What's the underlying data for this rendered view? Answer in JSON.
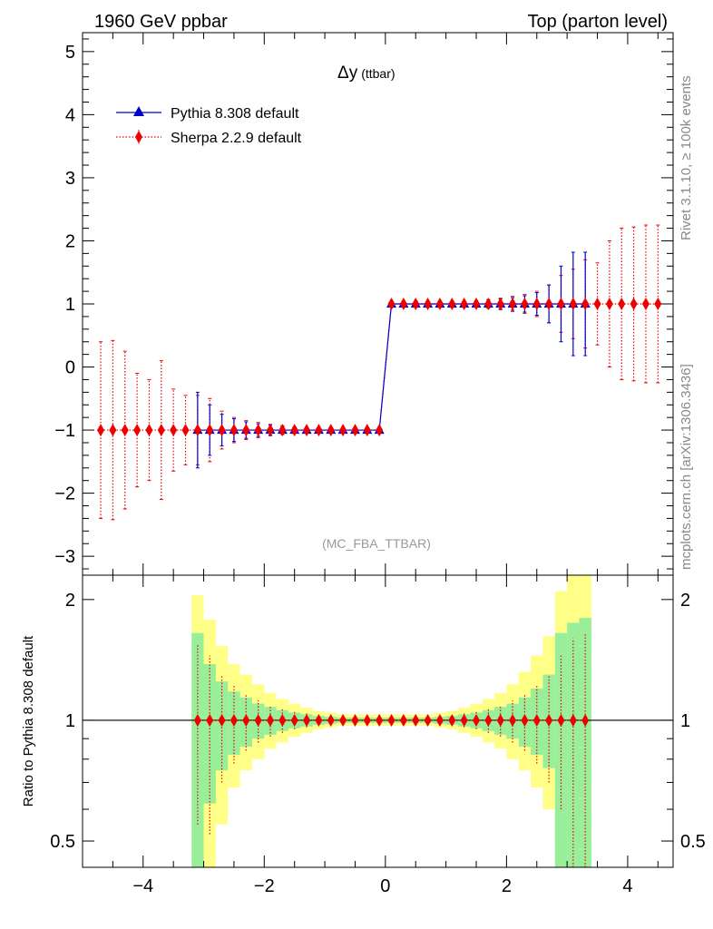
{
  "header": {
    "left": "1960 GeV ppbar",
    "right": "Top (parton level)"
  },
  "side": {
    "upper": "Rivet 3.1.10, ≥ 100k events",
    "lower": "mcplots.cern.ch [arXiv:1306.3436]"
  },
  "chart_data": [
    {
      "type": "line",
      "title": "Δy",
      "title_sub": "(ttbar)",
      "watermark": "(MC_FBA_TTBAR)",
      "xlabel": "",
      "ylabel": "",
      "xlim": [
        -5,
        4.75
      ],
      "ylim": [
        -3.3,
        5.3
      ],
      "x_ticks": [
        -4,
        -2,
        0,
        2,
        4
      ],
      "y_ticks": [
        -3,
        -2,
        -1,
        0,
        1,
        2,
        3,
        4,
        5
      ],
      "legend": "top-left",
      "series": [
        {
          "name": "Pythia 8.308 default",
          "color": "#0000cc",
          "marker": "triangle",
          "line": "solid",
          "x": [
            -3.1,
            -2.9,
            -2.7,
            -2.5,
            -2.3,
            -2.1,
            -1.9,
            -1.7,
            -1.5,
            -1.3,
            -1.1,
            -0.9,
            -0.7,
            -0.5,
            -0.3,
            -0.1,
            0.1,
            0.3,
            0.5,
            0.7,
            0.9,
            1.1,
            1.3,
            1.5,
            1.7,
            1.9,
            2.1,
            2.3,
            2.5,
            2.7,
            2.9,
            3.1,
            3.3
          ],
          "y": [
            -1,
            -1,
            -1,
            -1,
            -1,
            -1,
            -1,
            -1,
            -1,
            -1,
            -1,
            -1,
            -1,
            -1,
            -1,
            -1,
            1,
            1,
            1,
            1,
            1,
            1,
            1,
            1,
            1,
            1,
            1,
            1,
            1,
            1,
            1,
            1,
            1
          ],
          "err": [
            0.6,
            0.4,
            0.25,
            0.18,
            0.13,
            0.1,
            0.08,
            0.06,
            0.05,
            0.04,
            0.03,
            0.025,
            0.02,
            0.02,
            0.02,
            0.02,
            0.02,
            0.02,
            0.02,
            0.02,
            0.025,
            0.03,
            0.04,
            0.05,
            0.06,
            0.08,
            0.1,
            0.13,
            0.18,
            0.3,
            0.6,
            0.82,
            0.82
          ]
        },
        {
          "name": "Sherpa 2.2.9 default",
          "color": "#ee0000",
          "marker": "diamond",
          "line": "dotted",
          "x": [
            -4.7,
            -4.5,
            -4.3,
            -4.1,
            -3.9,
            -3.7,
            -3.5,
            -3.3,
            -3.1,
            -2.9,
            -2.7,
            -2.5,
            -2.3,
            -2.1,
            -1.9,
            -1.7,
            -1.5,
            -1.3,
            -1.1,
            -0.9,
            -0.7,
            -0.5,
            -0.3,
            -0.1,
            0.1,
            0.3,
            0.5,
            0.7,
            0.9,
            1.1,
            1.3,
            1.5,
            1.7,
            1.9,
            2.1,
            2.3,
            2.5,
            2.7,
            2.9,
            3.1,
            3.3,
            3.5,
            3.7,
            3.9,
            4.1,
            4.3,
            4.5
          ],
          "y": [
            -1,
            -1,
            -1,
            -1,
            -1,
            -1,
            -1,
            -1,
            -1,
            -1,
            -1,
            -1,
            -1,
            -1,
            -1,
            -1,
            -1,
            -1,
            -1,
            -1,
            -1,
            -1,
            -1,
            -1,
            1,
            1,
            1,
            1,
            1,
            1,
            1,
            1,
            1,
            1,
            1,
            1,
            1,
            1,
            1,
            1,
            1,
            1,
            1,
            1,
            1,
            1,
            1
          ],
          "err": [
            1.4,
            1.42,
            1.25,
            0.9,
            0.8,
            1.1,
            0.65,
            0.55,
            0.55,
            0.5,
            0.3,
            0.2,
            0.15,
            0.12,
            0.09,
            0.07,
            0.05,
            0.04,
            0.03,
            0.03,
            0.02,
            0.02,
            0.02,
            0.02,
            0.02,
            0.02,
            0.02,
            0.02,
            0.03,
            0.03,
            0.04,
            0.05,
            0.07,
            0.09,
            0.12,
            0.15,
            0.2,
            0.3,
            0.45,
            0.55,
            0.7,
            0.65,
            1.0,
            1.2,
            1.22,
            1.25,
            1.25
          ]
        }
      ]
    },
    {
      "type": "line",
      "ylabel": "Ratio to Pythia 8.308 default",
      "xlim": [
        -5,
        4.75
      ],
      "ylim": [
        0.43,
        2.3
      ],
      "log_y": true,
      "x_ticks": [
        -4,
        -2,
        0,
        2,
        4
      ],
      "y_ticks": [
        0.5,
        1,
        2
      ],
      "bands": {
        "x_edges": [
          -3.2,
          -3.0,
          -2.8,
          -2.6,
          -2.4,
          -2.2,
          -2.0,
          -1.8,
          -1.6,
          -1.4,
          -1.2,
          -1.0,
          -0.8,
          -0.6,
          -0.4,
          -0.2,
          0.0,
          0.2,
          0.4,
          0.6,
          0.8,
          1.0,
          1.2,
          1.4,
          1.6,
          1.8,
          2.0,
          2.2,
          2.4,
          2.6,
          2.8,
          3.0,
          3.2,
          3.4
        ],
        "green_low": [
          0.36,
          0.62,
          0.75,
          0.82,
          0.86,
          0.9,
          0.92,
          0.94,
          0.955,
          0.965,
          0.975,
          0.98,
          0.985,
          0.985,
          0.985,
          0.985,
          0.985,
          0.985,
          0.985,
          0.985,
          0.98,
          0.975,
          0.965,
          0.955,
          0.94,
          0.92,
          0.9,
          0.86,
          0.82,
          0.76,
          0.35,
          0.35,
          0.35
        ],
        "green_high": [
          1.65,
          1.38,
          1.25,
          1.18,
          1.14,
          1.1,
          1.08,
          1.06,
          1.045,
          1.035,
          1.025,
          1.02,
          1.015,
          1.015,
          1.015,
          1.015,
          1.015,
          1.015,
          1.015,
          1.015,
          1.02,
          1.025,
          1.035,
          1.045,
          1.06,
          1.08,
          1.1,
          1.14,
          1.2,
          1.3,
          1.65,
          1.75,
          1.8
        ],
        "yellow_low": [
          0.3,
          0.43,
          0.55,
          0.68,
          0.75,
          0.8,
          0.85,
          0.88,
          0.91,
          0.93,
          0.95,
          0.96,
          0.97,
          0.97,
          0.97,
          0.97,
          0.97,
          0.97,
          0.97,
          0.97,
          0.96,
          0.95,
          0.93,
          0.91,
          0.88,
          0.85,
          0.8,
          0.75,
          0.68,
          0.6,
          0.52,
          0.3,
          0.3
        ],
        "yellow_high": [
          2.05,
          1.78,
          1.53,
          1.38,
          1.3,
          1.23,
          1.17,
          1.13,
          1.1,
          1.075,
          1.055,
          1.045,
          1.035,
          1.035,
          1.035,
          1.035,
          1.035,
          1.035,
          1.035,
          1.035,
          1.045,
          1.055,
          1.075,
          1.1,
          1.13,
          1.17,
          1.23,
          1.32,
          1.45,
          1.62,
          2.1,
          2.3,
          2.4
        ]
      },
      "series": [
        {
          "name": "Sherpa 2.2.9 default",
          "color": "#ee0000",
          "x": [
            -3.1,
            -2.9,
            -2.7,
            -2.5,
            -2.3,
            -2.1,
            -1.9,
            -1.7,
            -1.5,
            -1.3,
            -1.1,
            -0.9,
            -0.7,
            -0.5,
            -0.3,
            -0.1,
            0.1,
            0.3,
            0.5,
            0.7,
            0.9,
            1.1,
            1.3,
            1.5,
            1.7,
            1.9,
            2.1,
            2.3,
            2.5,
            2.7,
            2.9,
            3.1,
            3.3
          ],
          "y": [
            1,
            1,
            1,
            1,
            1,
            1,
            1,
            1,
            1,
            1,
            1,
            1,
            1,
            1,
            1,
            1,
            1,
            1,
            1,
            1,
            1,
            1,
            1,
            1,
            1,
            1,
            1,
            1,
            1,
            1,
            1,
            1,
            1
          ],
          "lo": [
            0.55,
            0.52,
            0.7,
            0.78,
            0.84,
            0.88,
            0.91,
            0.93,
            0.95,
            0.96,
            0.97,
            0.975,
            0.98,
            0.985,
            0.985,
            0.985,
            0.985,
            0.985,
            0.985,
            0.98,
            0.975,
            0.97,
            0.96,
            0.95,
            0.93,
            0.91,
            0.88,
            0.84,
            0.78,
            0.7,
            0.6,
            0.43,
            0.43
          ],
          "hi": [
            1.55,
            1.45,
            1.3,
            1.22,
            1.16,
            1.12,
            1.09,
            1.07,
            1.05,
            1.04,
            1.03,
            1.025,
            1.02,
            1.015,
            1.015,
            1.015,
            1.015,
            1.015,
            1.015,
            1.02,
            1.025,
            1.03,
            1.04,
            1.05,
            1.07,
            1.09,
            1.12,
            1.16,
            1.22,
            1.3,
            1.45,
            1.6,
            1.65
          ]
        }
      ]
    }
  ]
}
